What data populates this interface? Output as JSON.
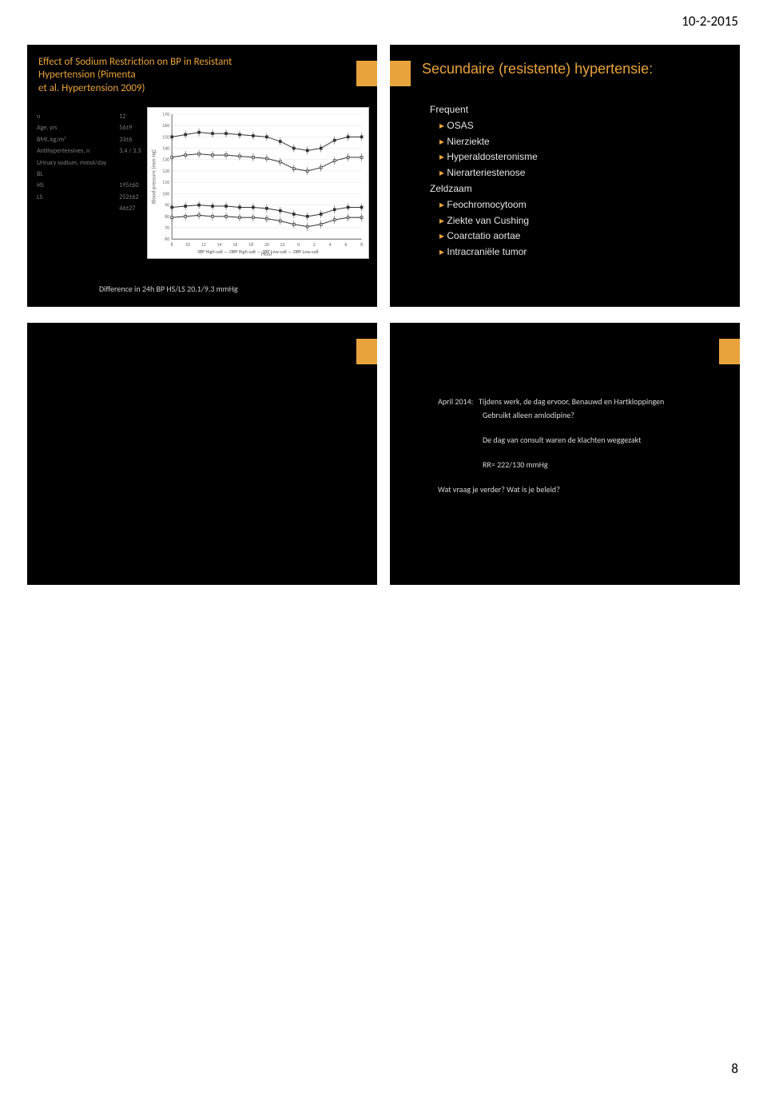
{
  "page": {
    "header_date": "10-2-2015",
    "footer_page": "8"
  },
  "slide1": {
    "title_line1": "Effect of Sodium Restriction on BP in Resistant Hypertension (Pimenta",
    "title_line2": "et al. Hypertension 2009)",
    "table": {
      "rows": [
        [
          "n",
          "12"
        ],
        [
          "Age, yrs",
          "56±9"
        ],
        [
          "BMI, kg/m²",
          "33±6"
        ],
        [
          "Antihypertensives, n",
          "3.4 / 3.3"
        ],
        [
          "Urinary sodium, mmol/day",
          ""
        ],
        [
          "BL",
          ""
        ],
        [
          "HS",
          "195±60"
        ],
        [
          "LS",
          "252±62"
        ],
        [
          "",
          "46±27"
        ]
      ]
    },
    "caption": "Difference in 24h BP HS/LS 20.1/9.3 mmHg",
    "chart": {
      "type": "line",
      "background_color": "#ffffff",
      "grid_color": "#e0e0e0",
      "axis_color": "#666666",
      "ylabel": "Blood pressure (mm Hg)",
      "xlabel": "Hour",
      "ylim": [
        60,
        170
      ],
      "ytick_step": 10,
      "xlim": [
        8,
        34
      ],
      "x_ticks": [
        8,
        10,
        12,
        14,
        16,
        18,
        20,
        22,
        0,
        2,
        4,
        6,
        8
      ],
      "label_fontsize": 7,
      "tick_fontsize": 6,
      "line_color": "#333333",
      "marker": "square",
      "marker_size": 3,
      "series": {
        "SBP_High": [
          150,
          152,
          154,
          153,
          153,
          152,
          151,
          150,
          146,
          140,
          138,
          140,
          147,
          150,
          150
        ],
        "SBP_Low": [
          132,
          134,
          135,
          134,
          134,
          133,
          132,
          131,
          128,
          122,
          120,
          123,
          129,
          132,
          132
        ],
        "DBP_High": [
          88,
          89,
          90,
          89,
          89,
          88,
          88,
          87,
          85,
          82,
          80,
          82,
          86,
          88,
          88
        ],
        "DBP_Low": [
          79,
          80,
          81,
          80,
          80,
          79,
          79,
          78,
          76,
          73,
          71,
          73,
          77,
          79,
          79
        ]
      },
      "legend": "SBP High-salt  —  DBP High-salt  —  SBP Low-salt  —  DBP Low-salt"
    }
  },
  "slide2": {
    "title": "Secundaire (resistente) hypertensie:",
    "group1_header": "Frequent",
    "group1_items": [
      "OSAS",
      "Nierziekte",
      "Hyperaldosteronisme",
      "Nierarteriestenose"
    ],
    "group2_header": "Zeldzaam",
    "group2_items": [
      "Feochromocytoom",
      "Ziekte van Cushing",
      "Coarctatio aortae",
      "Intracraniële tumor"
    ]
  },
  "slide4": {
    "line1_label": "April 2014:",
    "line1_text": "Tijdens werk, de dag ervoor, Benauwd en Hartkloppingen",
    "line2": "Gebruikt alleen amlodipine?",
    "line3": "De dag van consult waren de klachten weggezakt",
    "line4": "RR= 222/130 mmHg",
    "line5": "Wat vraag je verder? Wat is je beleid?"
  },
  "colors": {
    "accent": "#e8a33d",
    "slide_bg": "#000000",
    "text_light": "#e6e6e6"
  }
}
